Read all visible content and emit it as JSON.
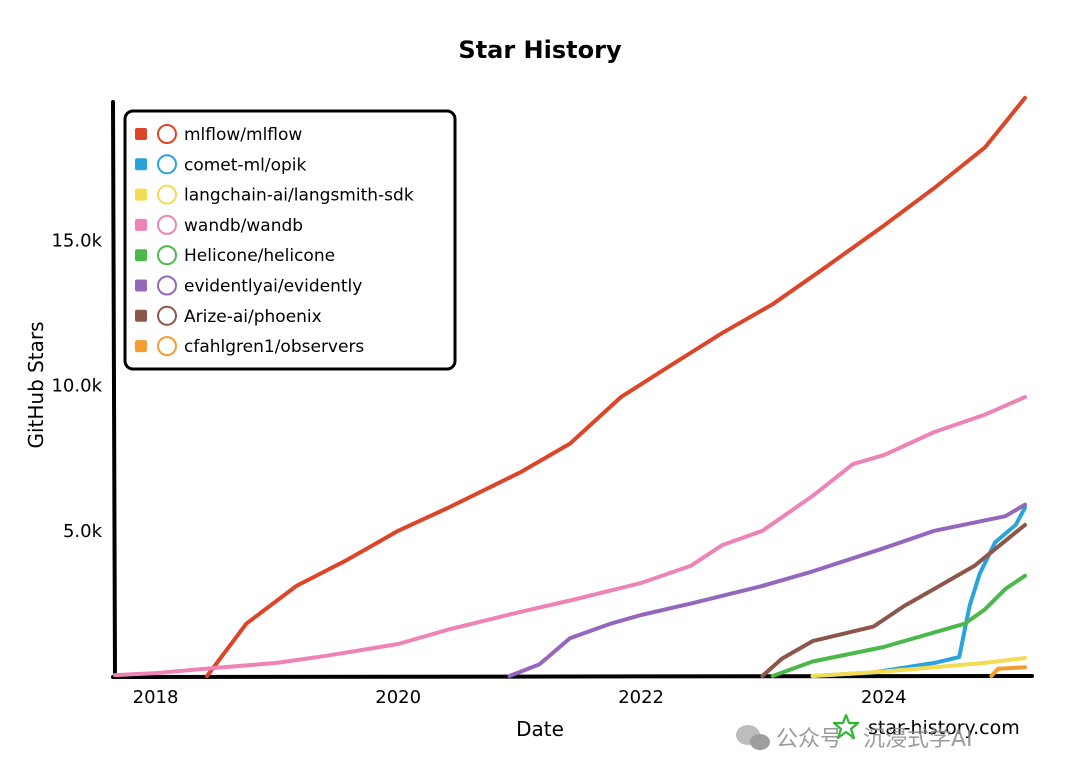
{
  "chart_data": {
    "type": "line",
    "title": "Star History",
    "xlabel": "Date",
    "ylabel": "GitHub Stars",
    "xlim": [
      "2017-09-01",
      "2025-03-01"
    ],
    "ylim": [
      0,
      20000
    ],
    "x_ticks": [
      {
        "date": "2018-01-01",
        "label": "2018"
      },
      {
        "date": "2020-01-01",
        "label": "2020"
      },
      {
        "date": "2022-01-01",
        "label": "2022"
      },
      {
        "date": "2024-01-01",
        "label": "2024"
      }
    ],
    "y_ticks": [
      {
        "value": 5000,
        "label": "5.0k"
      },
      {
        "value": 10000,
        "label": "10.0k"
      },
      {
        "value": 15000,
        "label": "15.0k"
      }
    ],
    "grid": false,
    "legend_position": "top-left",
    "series": [
      {
        "name": "mlflow/mlflow",
        "color": "#dd4528",
        "icon": "mlflow-logo",
        "points": [
          [
            "2018-06-05",
            0
          ],
          [
            "2018-10-01",
            1800
          ],
          [
            "2019-03-01",
            3100
          ],
          [
            "2019-08-01",
            4000
          ],
          [
            "2020-01-01",
            5000
          ],
          [
            "2020-06-01",
            5800
          ],
          [
            "2021-01-01",
            7000
          ],
          [
            "2021-06-01",
            8000
          ],
          [
            "2021-11-01",
            9600
          ],
          [
            "2022-04-01",
            10700
          ],
          [
            "2022-09-01",
            11800
          ],
          [
            "2023-02-01",
            12800
          ],
          [
            "2023-07-01",
            14000
          ],
          [
            "2024-01-01",
            15500
          ],
          [
            "2024-06-01",
            16800
          ],
          [
            "2024-11-01",
            18200
          ],
          [
            "2025-03-01",
            19900
          ]
        ]
      },
      {
        "name": "comet-ml/opik",
        "color": "#28a3dd",
        "icon": "opik-logo",
        "points": [
          [
            "2023-06-01",
            0
          ],
          [
            "2023-12-01",
            120
          ],
          [
            "2024-06-01",
            450
          ],
          [
            "2024-08-15",
            650
          ],
          [
            "2024-09-15",
            2400
          ],
          [
            "2024-10-15",
            3500
          ],
          [
            "2024-12-01",
            4600
          ],
          [
            "2025-02-01",
            5200
          ],
          [
            "2025-03-01",
            5800
          ]
        ]
      },
      {
        "name": "langchain-ai/langsmith-sdk",
        "color": "#f3db52",
        "icon": "langsmith-logo",
        "points": [
          [
            "2023-06-01",
            0
          ],
          [
            "2024-01-01",
            150
          ],
          [
            "2024-06-01",
            300
          ],
          [
            "2024-11-01",
            450
          ],
          [
            "2025-03-01",
            620
          ]
        ]
      },
      {
        "name": "wandb/wandb",
        "color": "#ed84b5",
        "icon": "wandb-logo",
        "points": [
          [
            "2017-09-01",
            30
          ],
          [
            "2018-01-01",
            100
          ],
          [
            "2018-06-01",
            250
          ],
          [
            "2019-01-01",
            450
          ],
          [
            "2019-06-01",
            700
          ],
          [
            "2020-01-01",
            1100
          ],
          [
            "2020-06-01",
            1600
          ],
          [
            "2021-01-01",
            2200
          ],
          [
            "2021-06-01",
            2600
          ],
          [
            "2022-01-01",
            3200
          ],
          [
            "2022-06-01",
            3800
          ],
          [
            "2022-09-01",
            4500
          ],
          [
            "2023-01-01",
            5000
          ],
          [
            "2023-06-01",
            6200
          ],
          [
            "2023-10-01",
            7300
          ],
          [
            "2024-01-01",
            7600
          ],
          [
            "2024-06-01",
            8400
          ],
          [
            "2024-11-01",
            9000
          ],
          [
            "2025-03-01",
            9600
          ]
        ]
      },
      {
        "name": "Helicone/helicone",
        "color": "#4cb84b",
        "icon": "helicone-logo",
        "points": [
          [
            "2023-02-01",
            0
          ],
          [
            "2023-06-01",
            500
          ],
          [
            "2024-01-01",
            1000
          ],
          [
            "2024-06-01",
            1500
          ],
          [
            "2024-09-01",
            1800
          ],
          [
            "2024-11-01",
            2300
          ],
          [
            "2025-01-01",
            3000
          ],
          [
            "2025-03-01",
            3450
          ]
        ]
      },
      {
        "name": "evidentlyai/evidently",
        "color": "#9467bd",
        "icon": "evidently-logo",
        "points": [
          [
            "2020-12-01",
            0
          ],
          [
            "2021-03-01",
            400
          ],
          [
            "2021-06-01",
            1300
          ],
          [
            "2021-10-01",
            1800
          ],
          [
            "2022-01-01",
            2100
          ],
          [
            "2022-06-01",
            2500
          ],
          [
            "2023-01-01",
            3100
          ],
          [
            "2023-06-01",
            3600
          ],
          [
            "2024-01-01",
            4400
          ],
          [
            "2024-06-01",
            5000
          ],
          [
            "2025-01-01",
            5500
          ],
          [
            "2025-03-01",
            5900
          ]
        ]
      },
      {
        "name": "Arize-ai/phoenix",
        "color": "#8c564b",
        "icon": "phoenix-logo",
        "points": [
          [
            "2023-01-01",
            0
          ],
          [
            "2023-03-01",
            600
          ],
          [
            "2023-06-01",
            1200
          ],
          [
            "2023-12-01",
            1700
          ],
          [
            "2024-03-01",
            2400
          ],
          [
            "2024-06-01",
            3000
          ],
          [
            "2024-10-01",
            3800
          ],
          [
            "2025-03-01",
            5200
          ]
        ]
      },
      {
        "name": "cfahlgren1/observers",
        "color": "#f39c30",
        "icon": "observers-avatar",
        "points": [
          [
            "2024-11-20",
            0
          ],
          [
            "2024-12-10",
            250
          ],
          [
            "2025-03-01",
            300
          ]
        ]
      }
    ]
  },
  "watermark": {
    "site": "star-history.com",
    "overlay": "公众号 · 沉浸式学AI"
  }
}
